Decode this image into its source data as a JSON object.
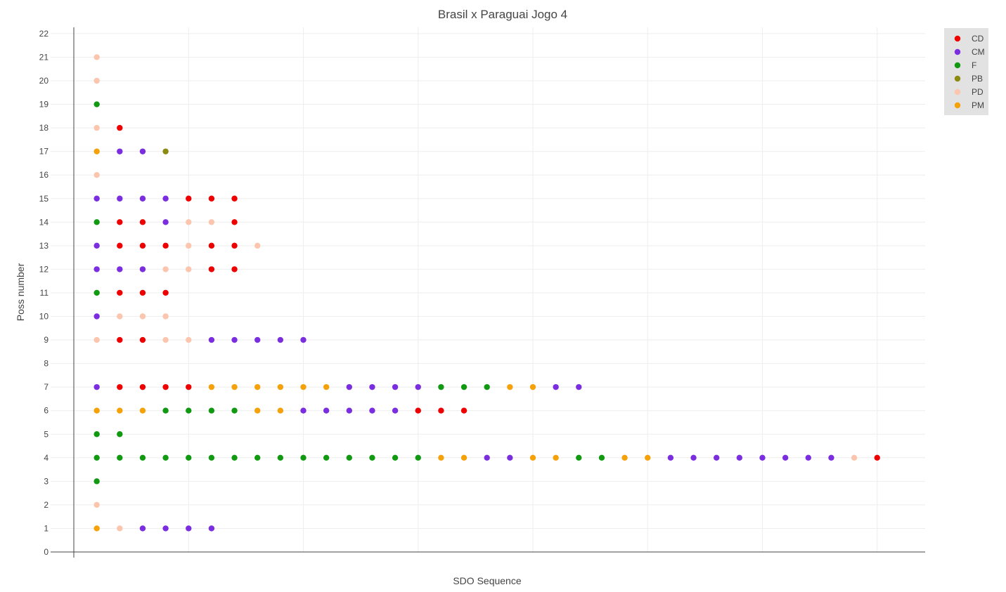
{
  "chart_data": {
    "type": "scatter",
    "title": "Brasil x Paraguai Jogo 4",
    "xlabel": "SDO Sequence",
    "ylabel": "Poss number",
    "x_tick_labels_shown": false,
    "xlim": [
      0,
      35
    ],
    "ylim": [
      0,
      22
    ],
    "yticks": [
      0,
      1,
      2,
      3,
      4,
      5,
      6,
      7,
      8,
      9,
      10,
      11,
      12,
      13,
      14,
      15,
      16,
      17,
      18,
      19,
      20,
      21,
      22
    ],
    "grid": true,
    "legend_position": "top-right",
    "colors": {
      "CD": "#ee0000",
      "CM": "#7a2ee0",
      "F": "#119911",
      "PB": "#8b8b14",
      "PD": "#fbc6ad",
      "PM": "#f5a10a"
    },
    "categories": [
      "CD",
      "CM",
      "F",
      "PB",
      "PD",
      "PM"
    ],
    "possessions": [
      {
        "poss": 21,
        "sequence": [
          "PD"
        ]
      },
      {
        "poss": 20,
        "sequence": [
          "PD"
        ]
      },
      {
        "poss": 19,
        "sequence": [
          "F"
        ]
      },
      {
        "poss": 18,
        "sequence": [
          "PD",
          "CD"
        ]
      },
      {
        "poss": 17,
        "sequence": [
          "PM",
          "CM",
          "CM",
          "PB"
        ]
      },
      {
        "poss": 16,
        "sequence": [
          "PD"
        ]
      },
      {
        "poss": 15,
        "sequence": [
          "CM",
          "CM",
          "CM",
          "CM",
          "CD",
          "CD",
          "CD"
        ]
      },
      {
        "poss": 14,
        "sequence": [
          "F",
          "CD",
          "CD",
          "CM",
          "PD",
          "PD",
          "CD"
        ]
      },
      {
        "poss": 13,
        "sequence": [
          "CM",
          "CD",
          "CD",
          "CD",
          "PD",
          "CD",
          "CD",
          "PD"
        ]
      },
      {
        "poss": 12,
        "sequence": [
          "CM",
          "CM",
          "CM",
          "PD",
          "PD",
          "CD",
          "CD"
        ]
      },
      {
        "poss": 11,
        "sequence": [
          "F",
          "CD",
          "CD",
          "CD"
        ]
      },
      {
        "poss": 10,
        "sequence": [
          "CM",
          "PD",
          "PD",
          "PD"
        ]
      },
      {
        "poss": 9,
        "sequence": [
          "PD",
          "CD",
          "CD",
          "PD",
          "PD",
          "CM",
          "CM",
          "CM",
          "CM",
          "CM"
        ]
      },
      {
        "poss": 7,
        "sequence": [
          "CM",
          "CD",
          "CD",
          "CD",
          "CD",
          "PM",
          "PM",
          "PM",
          "PM",
          "PM",
          "PM",
          "CM",
          "CM",
          "CM",
          "CM",
          "F",
          "F",
          "F",
          "PM",
          "PM",
          "CM",
          "CM"
        ]
      },
      {
        "poss": 6,
        "sequence": [
          "PM",
          "PM",
          "PM",
          "F",
          "F",
          "F",
          "F",
          "PM",
          "PM",
          "CM",
          "CM",
          "CM",
          "CM",
          "CM",
          "CD",
          "CD",
          "CD"
        ]
      },
      {
        "poss": 5,
        "sequence": [
          "F",
          "F"
        ]
      },
      {
        "poss": 4,
        "sequence": [
          "F",
          "F",
          "F",
          "F",
          "F",
          "F",
          "F",
          "F",
          "F",
          "F",
          "F",
          "F",
          "F",
          "F",
          "F",
          "PM",
          "PM",
          "CM",
          "CM",
          "PM",
          "PM",
          "F",
          "F",
          "PM",
          "PM",
          "CM",
          "CM",
          "CM",
          "CM",
          "CM",
          "CM",
          "CM",
          "CM",
          "PD",
          "CD"
        ]
      },
      {
        "poss": 3,
        "sequence": [
          "F"
        ]
      },
      {
        "poss": 2,
        "sequence": [
          "PD"
        ]
      },
      {
        "poss": 1,
        "sequence": [
          "PM",
          "PD",
          "CM",
          "CM",
          "CM",
          "CM"
        ]
      }
    ]
  }
}
